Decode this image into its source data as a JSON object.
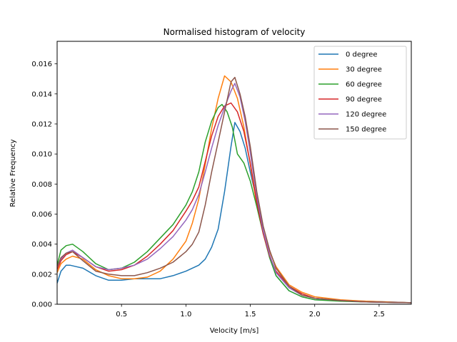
{
  "chart_data": {
    "type": "line",
    "title": "Normalised histogram of velocity",
    "xlabel": "Velocity [m/s]",
    "ylabel": "Relative Frequency",
    "xlim": [
      0.0,
      2.75
    ],
    "ylim": [
      0.0,
      0.0175
    ],
    "x_ticks": [
      0.5,
      1.0,
      1.5,
      2.0,
      2.5
    ],
    "x_tick_labels": [
      "0.5",
      "1.0",
      "1.5",
      "2.0",
      "2.5"
    ],
    "y_ticks": [
      0.0,
      0.002,
      0.004,
      0.006,
      0.008,
      0.01,
      0.012,
      0.014,
      0.016
    ],
    "y_tick_labels": [
      "0.000",
      "0.002",
      "0.004",
      "0.006",
      "0.008",
      "0.010",
      "0.012",
      "0.014",
      "0.016"
    ],
    "grid": false,
    "legend_position": "top-right",
    "series": [
      {
        "name": "0 degree",
        "color": "#1f77b4",
        "points": [
          [
            0.0,
            0.0014
          ],
          [
            0.03,
            0.0022
          ],
          [
            0.07,
            0.0026
          ],
          [
            0.1,
            0.0026
          ],
          [
            0.15,
            0.0025
          ],
          [
            0.2,
            0.0024
          ],
          [
            0.3,
            0.0019
          ],
          [
            0.4,
            0.0016
          ],
          [
            0.5,
            0.0016
          ],
          [
            0.6,
            0.0017
          ],
          [
            0.7,
            0.0017
          ],
          [
            0.8,
            0.0017
          ],
          [
            0.9,
            0.0019
          ],
          [
            1.0,
            0.0022
          ],
          [
            1.1,
            0.0026
          ],
          [
            1.15,
            0.003
          ],
          [
            1.2,
            0.0038
          ],
          [
            1.25,
            0.005
          ],
          [
            1.3,
            0.0075
          ],
          [
            1.35,
            0.0105
          ],
          [
            1.38,
            0.0121
          ],
          [
            1.42,
            0.0115
          ],
          [
            1.46,
            0.0104
          ],
          [
            1.5,
            0.0088
          ],
          [
            1.55,
            0.0069
          ],
          [
            1.6,
            0.0048
          ],
          [
            1.65,
            0.0031
          ],
          [
            1.7,
            0.0019
          ],
          [
            1.8,
            0.0009
          ],
          [
            1.9,
            0.0005
          ],
          [
            2.0,
            0.0003
          ],
          [
            2.2,
            0.00025
          ],
          [
            2.4,
            0.0002
          ],
          [
            2.75,
            0.0001
          ]
        ]
      },
      {
        "name": "30 degree",
        "color": "#ff7f0e",
        "points": [
          [
            0.0,
            0.0021
          ],
          [
            0.03,
            0.0027
          ],
          [
            0.07,
            0.003
          ],
          [
            0.12,
            0.0032
          ],
          [
            0.2,
            0.003
          ],
          [
            0.3,
            0.0023
          ],
          [
            0.4,
            0.0019
          ],
          [
            0.5,
            0.0017
          ],
          [
            0.6,
            0.0017
          ],
          [
            0.7,
            0.0018
          ],
          [
            0.8,
            0.0022
          ],
          [
            0.9,
            0.003
          ],
          [
            1.0,
            0.0042
          ],
          [
            1.05,
            0.0054
          ],
          [
            1.1,
            0.007
          ],
          [
            1.15,
            0.0093
          ],
          [
            1.2,
            0.0117
          ],
          [
            1.25,
            0.0137
          ],
          [
            1.3,
            0.0152
          ],
          [
            1.35,
            0.0148
          ],
          [
            1.4,
            0.0137
          ],
          [
            1.45,
            0.0118
          ],
          [
            1.5,
            0.0093
          ],
          [
            1.55,
            0.0066
          ],
          [
            1.6,
            0.0048
          ],
          [
            1.65,
            0.0035
          ],
          [
            1.7,
            0.0025
          ],
          [
            1.8,
            0.0013
          ],
          [
            1.9,
            0.0008
          ],
          [
            2.0,
            0.0005
          ],
          [
            2.2,
            0.0003
          ],
          [
            2.4,
            0.0002
          ],
          [
            2.75,
            0.0001
          ]
        ]
      },
      {
        "name": "60 degree",
        "color": "#2ca02c",
        "points": [
          [
            0.0,
            0.0026
          ],
          [
            0.03,
            0.0036
          ],
          [
            0.07,
            0.0039
          ],
          [
            0.12,
            0.004
          ],
          [
            0.2,
            0.0035
          ],
          [
            0.3,
            0.0027
          ],
          [
            0.4,
            0.0023
          ],
          [
            0.5,
            0.0024
          ],
          [
            0.6,
            0.0028
          ],
          [
            0.7,
            0.0035
          ],
          [
            0.8,
            0.0044
          ],
          [
            0.9,
            0.0053
          ],
          [
            1.0,
            0.0066
          ],
          [
            1.05,
            0.0075
          ],
          [
            1.1,
            0.0088
          ],
          [
            1.15,
            0.0108
          ],
          [
            1.2,
            0.0122
          ],
          [
            1.25,
            0.0131
          ],
          [
            1.28,
            0.0133
          ],
          [
            1.32,
            0.0128
          ],
          [
            1.36,
            0.0118
          ],
          [
            1.4,
            0.01
          ],
          [
            1.45,
            0.0094
          ],
          [
            1.5,
            0.0082
          ],
          [
            1.55,
            0.0065
          ],
          [
            1.6,
            0.0047
          ],
          [
            1.65,
            0.0031
          ],
          [
            1.7,
            0.0019
          ],
          [
            1.8,
            0.0009
          ],
          [
            1.9,
            0.0005
          ],
          [
            2.0,
            0.0003
          ],
          [
            2.2,
            0.0002
          ],
          [
            2.4,
            0.00015
          ],
          [
            2.75,
            0.0001
          ]
        ]
      },
      {
        "name": "90 degree",
        "color": "#d62728",
        "points": [
          [
            0.0,
            0.0023
          ],
          [
            0.03,
            0.0029
          ],
          [
            0.07,
            0.0033
          ],
          [
            0.12,
            0.0035
          ],
          [
            0.2,
            0.0031
          ],
          [
            0.3,
            0.0025
          ],
          [
            0.4,
            0.0022
          ],
          [
            0.5,
            0.0023
          ],
          [
            0.6,
            0.0026
          ],
          [
            0.7,
            0.0032
          ],
          [
            0.8,
            0.004
          ],
          [
            0.9,
            0.0049
          ],
          [
            1.0,
            0.0062
          ],
          [
            1.05,
            0.0069
          ],
          [
            1.1,
            0.0078
          ],
          [
            1.15,
            0.0095
          ],
          [
            1.2,
            0.0112
          ],
          [
            1.25,
            0.0125
          ],
          [
            1.3,
            0.0132
          ],
          [
            1.35,
            0.0134
          ],
          [
            1.4,
            0.0128
          ],
          [
            1.45,
            0.0115
          ],
          [
            1.5,
            0.0094
          ],
          [
            1.55,
            0.0068
          ],
          [
            1.6,
            0.0047
          ],
          [
            1.65,
            0.0032
          ],
          [
            1.7,
            0.0022
          ],
          [
            1.8,
            0.0012
          ],
          [
            1.9,
            0.0007
          ],
          [
            2.0,
            0.0004
          ],
          [
            2.2,
            0.00025
          ],
          [
            2.4,
            0.00015
          ],
          [
            2.75,
            0.0001
          ]
        ]
      },
      {
        "name": "120 degree",
        "color": "#9467bd",
        "points": [
          [
            0.0,
            0.0025
          ],
          [
            0.03,
            0.003
          ],
          [
            0.07,
            0.0034
          ],
          [
            0.12,
            0.0036
          ],
          [
            0.2,
            0.0031
          ],
          [
            0.3,
            0.0025
          ],
          [
            0.4,
            0.0023
          ],
          [
            0.5,
            0.0024
          ],
          [
            0.6,
            0.0026
          ],
          [
            0.7,
            0.003
          ],
          [
            0.8,
            0.0037
          ],
          [
            0.9,
            0.0045
          ],
          [
            1.0,
            0.0056
          ],
          [
            1.05,
            0.0063
          ],
          [
            1.1,
            0.0073
          ],
          [
            1.15,
            0.0088
          ],
          [
            1.2,
            0.0104
          ],
          [
            1.25,
            0.0119
          ],
          [
            1.3,
            0.0131
          ],
          [
            1.35,
            0.0142
          ],
          [
            1.38,
            0.0147
          ],
          [
            1.42,
            0.0138
          ],
          [
            1.46,
            0.0122
          ],
          [
            1.5,
            0.0101
          ],
          [
            1.55,
            0.0072
          ],
          [
            1.6,
            0.0049
          ],
          [
            1.65,
            0.0033
          ],
          [
            1.7,
            0.0021
          ],
          [
            1.8,
            0.0011
          ],
          [
            1.9,
            0.0006
          ],
          [
            2.0,
            0.0004
          ],
          [
            2.2,
            0.00025
          ],
          [
            2.4,
            0.00015
          ],
          [
            2.75,
            0.0001
          ]
        ]
      },
      {
        "name": "150 degree",
        "color": "#8c564b",
        "points": [
          [
            0.0,
            0.0025
          ],
          [
            0.03,
            0.0031
          ],
          [
            0.07,
            0.0034
          ],
          [
            0.12,
            0.0035
          ],
          [
            0.2,
            0.0029
          ],
          [
            0.3,
            0.0022
          ],
          [
            0.4,
            0.002
          ],
          [
            0.5,
            0.0019
          ],
          [
            0.6,
            0.0019
          ],
          [
            0.7,
            0.0021
          ],
          [
            0.8,
            0.0024
          ],
          [
            0.9,
            0.0028
          ],
          [
            1.0,
            0.0035
          ],
          [
            1.05,
            0.004
          ],
          [
            1.1,
            0.0048
          ],
          [
            1.15,
            0.0066
          ],
          [
            1.2,
            0.0088
          ],
          [
            1.25,
            0.0108
          ],
          [
            1.3,
            0.0128
          ],
          [
            1.35,
            0.0148
          ],
          [
            1.38,
            0.0151
          ],
          [
            1.42,
            0.014
          ],
          [
            1.46,
            0.0125
          ],
          [
            1.5,
            0.0105
          ],
          [
            1.55,
            0.0075
          ],
          [
            1.6,
            0.0052
          ],
          [
            1.65,
            0.0036
          ],
          [
            1.7,
            0.0024
          ],
          [
            1.8,
            0.0012
          ],
          [
            1.9,
            0.0006
          ],
          [
            2.0,
            0.0004
          ],
          [
            2.2,
            0.00025
          ],
          [
            2.4,
            0.00015
          ],
          [
            2.75,
            0.0001
          ]
        ]
      }
    ]
  }
}
